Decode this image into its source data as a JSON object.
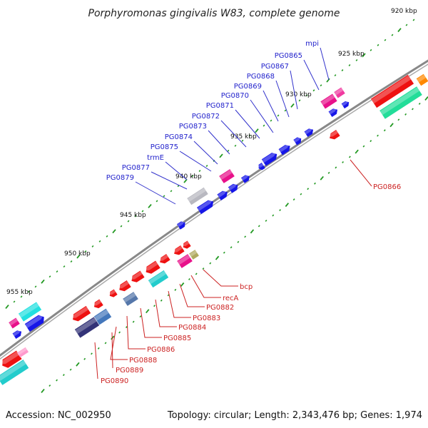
{
  "title": "Porphyromonas gingivalis W83, complete genome",
  "footer": {
    "accession": "Accession: NC_002950",
    "summary": "Topology: circular; Length: 2,343,476 bp; Genes: 1,974"
  },
  "colors": {
    "backbone": "#777777",
    "plus_gene": "#1a1adf",
    "minus_gene": "#ee1111",
    "plus_label": "#2222cc",
    "minus_label": "#cc2222",
    "tick": "#228822"
  },
  "kbp_labels": [
    "920 kbp",
    "925 kbp",
    "930 kbp",
    "935 kbp",
    "940 kbp",
    "945 kbp",
    "950 kbp",
    "955 kbp"
  ],
  "plus_gene_labels": [
    "mpi",
    "PG0865",
    "PG0867",
    "PG0868",
    "PG0869",
    "PG0870",
    "PG0871",
    "PG0872",
    "PG0873",
    "PG0874",
    "PG0875",
    "trmE",
    "PG0877",
    "PG0879"
  ],
  "minus_gene_labels": [
    "PG0866",
    "bcp",
    "recA",
    "PG0882",
    "PG0883",
    "PG0884",
    "PG0885",
    "PG0886",
    "PG0888",
    "PG0889",
    "PG0890"
  ]
}
